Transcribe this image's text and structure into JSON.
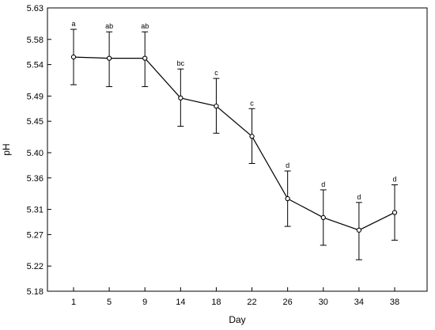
{
  "chart_data": {
    "type": "line",
    "title": "",
    "xlabel": "Day",
    "ylabel": "pH",
    "ylim": [
      5.18,
      5.63
    ],
    "grid": false,
    "legend": "none",
    "yticks": [
      "5.18",
      "5.22",
      "5.27",
      "5.31",
      "5.36",
      "5.40",
      "5.45",
      "5.49",
      "5.54",
      "5.58",
      "5.63"
    ],
    "categories": [
      "1",
      "5",
      "9",
      "14",
      "18",
      "22",
      "26",
      "30",
      "34",
      "38"
    ],
    "series": [
      {
        "values": [
          5.552,
          5.55,
          5.55,
          5.487,
          5.474,
          5.426,
          5.327,
          5.297,
          5.277,
          5.305
        ],
        "error_low": [
          5.508,
          5.505,
          5.505,
          5.442,
          5.431,
          5.383,
          5.283,
          5.253,
          5.23,
          5.261
        ],
        "error_high": [
          5.596,
          5.592,
          5.592,
          5.533,
          5.518,
          5.47,
          5.371,
          5.341,
          5.321,
          5.349
        ],
        "labels": [
          "a",
          "ab",
          "ab",
          "bc",
          "c",
          "c",
          "d",
          "d",
          "d",
          "d"
        ],
        "color": "#000000"
      }
    ]
  }
}
